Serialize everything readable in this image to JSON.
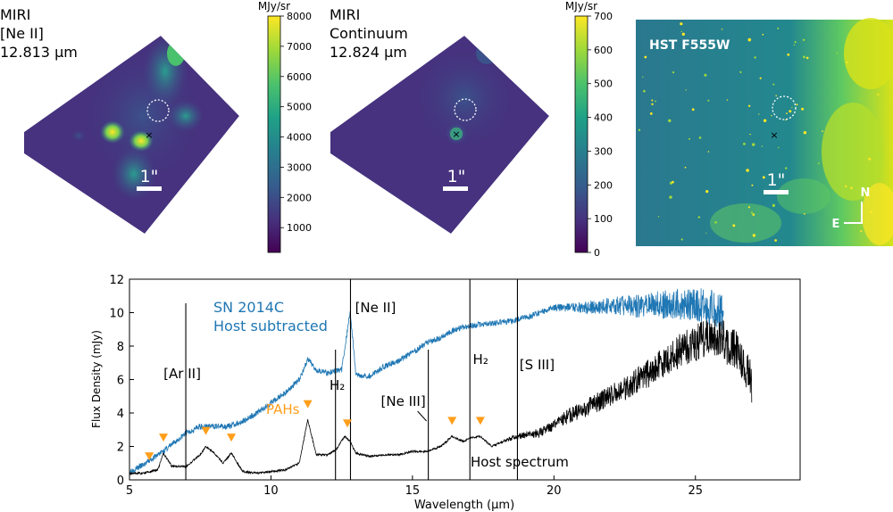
{
  "panels": {
    "neii": {
      "title_lines": [
        "MIRI",
        "[Ne II]",
        "12.813 μm"
      ],
      "colorbar_unit": "MJy/sr",
      "colorbar_ticks": [
        "8000",
        "7000",
        "6000",
        "5000",
        "4000",
        "3000",
        "2000",
        "1000"
      ],
      "scale_label": "1\""
    },
    "continuum": {
      "title_lines": [
        "MIRI",
        "Continuum",
        "12.824 μm"
      ],
      "colorbar_unit": "MJy/sr",
      "colorbar_ticks": [
        "700",
        "600",
        "500",
        "400",
        "300",
        "200",
        "100",
        "0"
      ],
      "scale_label": "1\""
    },
    "hst": {
      "title": "HST F555W",
      "scale_label": "1\"",
      "compass_n": "N",
      "compass_e": "E"
    }
  },
  "colors": {
    "viridis_dark": "#440154",
    "viridis_mid": "#21918c",
    "viridis_bright": "#fde725",
    "sn_spectrum": "#1f77b4",
    "host_spectrum": "#000000",
    "pah_marker": "#ff9e1b"
  },
  "chart_data": {
    "type": "line",
    "xlabel": "Wavelength (μm)",
    "ylabel": "Flux Density (mJy)",
    "xlim": [
      5,
      28.7
    ],
    "ylim": [
      0,
      12
    ],
    "xticks": [
      5,
      10,
      15,
      20,
      25
    ],
    "yticks": [
      0,
      2,
      4,
      6,
      8,
      10,
      12
    ],
    "series": [
      {
        "name": "SN 2014C Host subtracted",
        "label_lines": [
          "SN 2014C",
          "Host subtracted"
        ],
        "color": "#1f77b4",
        "x": [
          5.0,
          5.5,
          6.0,
          6.5,
          7.0,
          7.5,
          8.0,
          8.5,
          9.0,
          9.5,
          10.0,
          10.5,
          11.0,
          11.3,
          11.6,
          12.0,
          12.5,
          12.8,
          13.0,
          13.5,
          14.0,
          14.5,
          15.0,
          15.5,
          16.0,
          16.5,
          17.0,
          17.5,
          18.0,
          18.5,
          19.0,
          19.5,
          20.0,
          21.0,
          22.0,
          23.0,
          24.0,
          25.0,
          26.0
        ],
        "y": [
          0.5,
          0.9,
          1.5,
          2.1,
          2.8,
          3.2,
          3.2,
          3.2,
          3.5,
          4.0,
          4.6,
          5.2,
          6.0,
          7.2,
          6.6,
          6.4,
          6.6,
          10.1,
          6.3,
          6.2,
          6.8,
          7.1,
          7.6,
          8.2,
          8.5,
          9.0,
          9.2,
          9.3,
          9.4,
          9.5,
          9.7,
          10.0,
          10.3,
          10.3,
          10.4,
          10.4,
          10.5,
          10.5,
          10.0
        ]
      },
      {
        "name": "Host spectrum",
        "color": "#000000",
        "x": [
          5.0,
          5.5,
          6.0,
          6.2,
          6.5,
          7.0,
          7.5,
          7.7,
          8.0,
          8.3,
          8.6,
          9.0,
          9.5,
          10.0,
          10.5,
          11.0,
          11.3,
          11.6,
          12.0,
          12.3,
          12.6,
          12.8,
          13.0,
          13.5,
          14.0,
          14.5,
          15.0,
          15.5,
          16.0,
          16.4,
          16.8,
          17.0,
          17.4,
          17.8,
          18.5,
          19.0,
          19.5,
          20.0,
          20.5,
          21.0,
          21.5,
          22.0,
          22.5,
          23.0,
          23.5,
          24.0,
          24.5,
          25.0,
          25.5,
          26.0,
          26.5,
          27.0
        ],
        "y": [
          0.4,
          0.4,
          0.6,
          1.6,
          0.8,
          0.8,
          1.5,
          2.0,
          1.6,
          1.0,
          1.6,
          0.5,
          0.4,
          0.5,
          0.6,
          1.0,
          3.6,
          1.5,
          1.5,
          1.8,
          2.6,
          2.3,
          1.6,
          1.4,
          1.5,
          1.5,
          1.7,
          1.7,
          2.0,
          2.6,
          2.3,
          2.5,
          2.6,
          2.0,
          2.5,
          2.7,
          2.8,
          3.3,
          3.8,
          4.2,
          4.6,
          5.0,
          5.5,
          6.0,
          6.5,
          7.2,
          7.8,
          8.2,
          8.5,
          8.3,
          7.5,
          6.0
        ]
      }
    ],
    "line_markers": [
      {
        "x": 6.99,
        "label": "[Ar II]"
      },
      {
        "x": 12.28,
        "label": "H₂"
      },
      {
        "x": 12.81,
        "label": "[Ne II]"
      },
      {
        "x": 15.56,
        "label": "[Ne III]"
      },
      {
        "x": 17.03,
        "label": "H₂"
      },
      {
        "x": 18.71,
        "label": "[S III]"
      }
    ],
    "pah_features": {
      "label": "PAHs",
      "x": [
        5.7,
        6.2,
        7.7,
        8.6,
        11.3,
        12.7,
        16.4,
        17.4
      ]
    },
    "annotations": {
      "host_label": "Host spectrum"
    }
  }
}
